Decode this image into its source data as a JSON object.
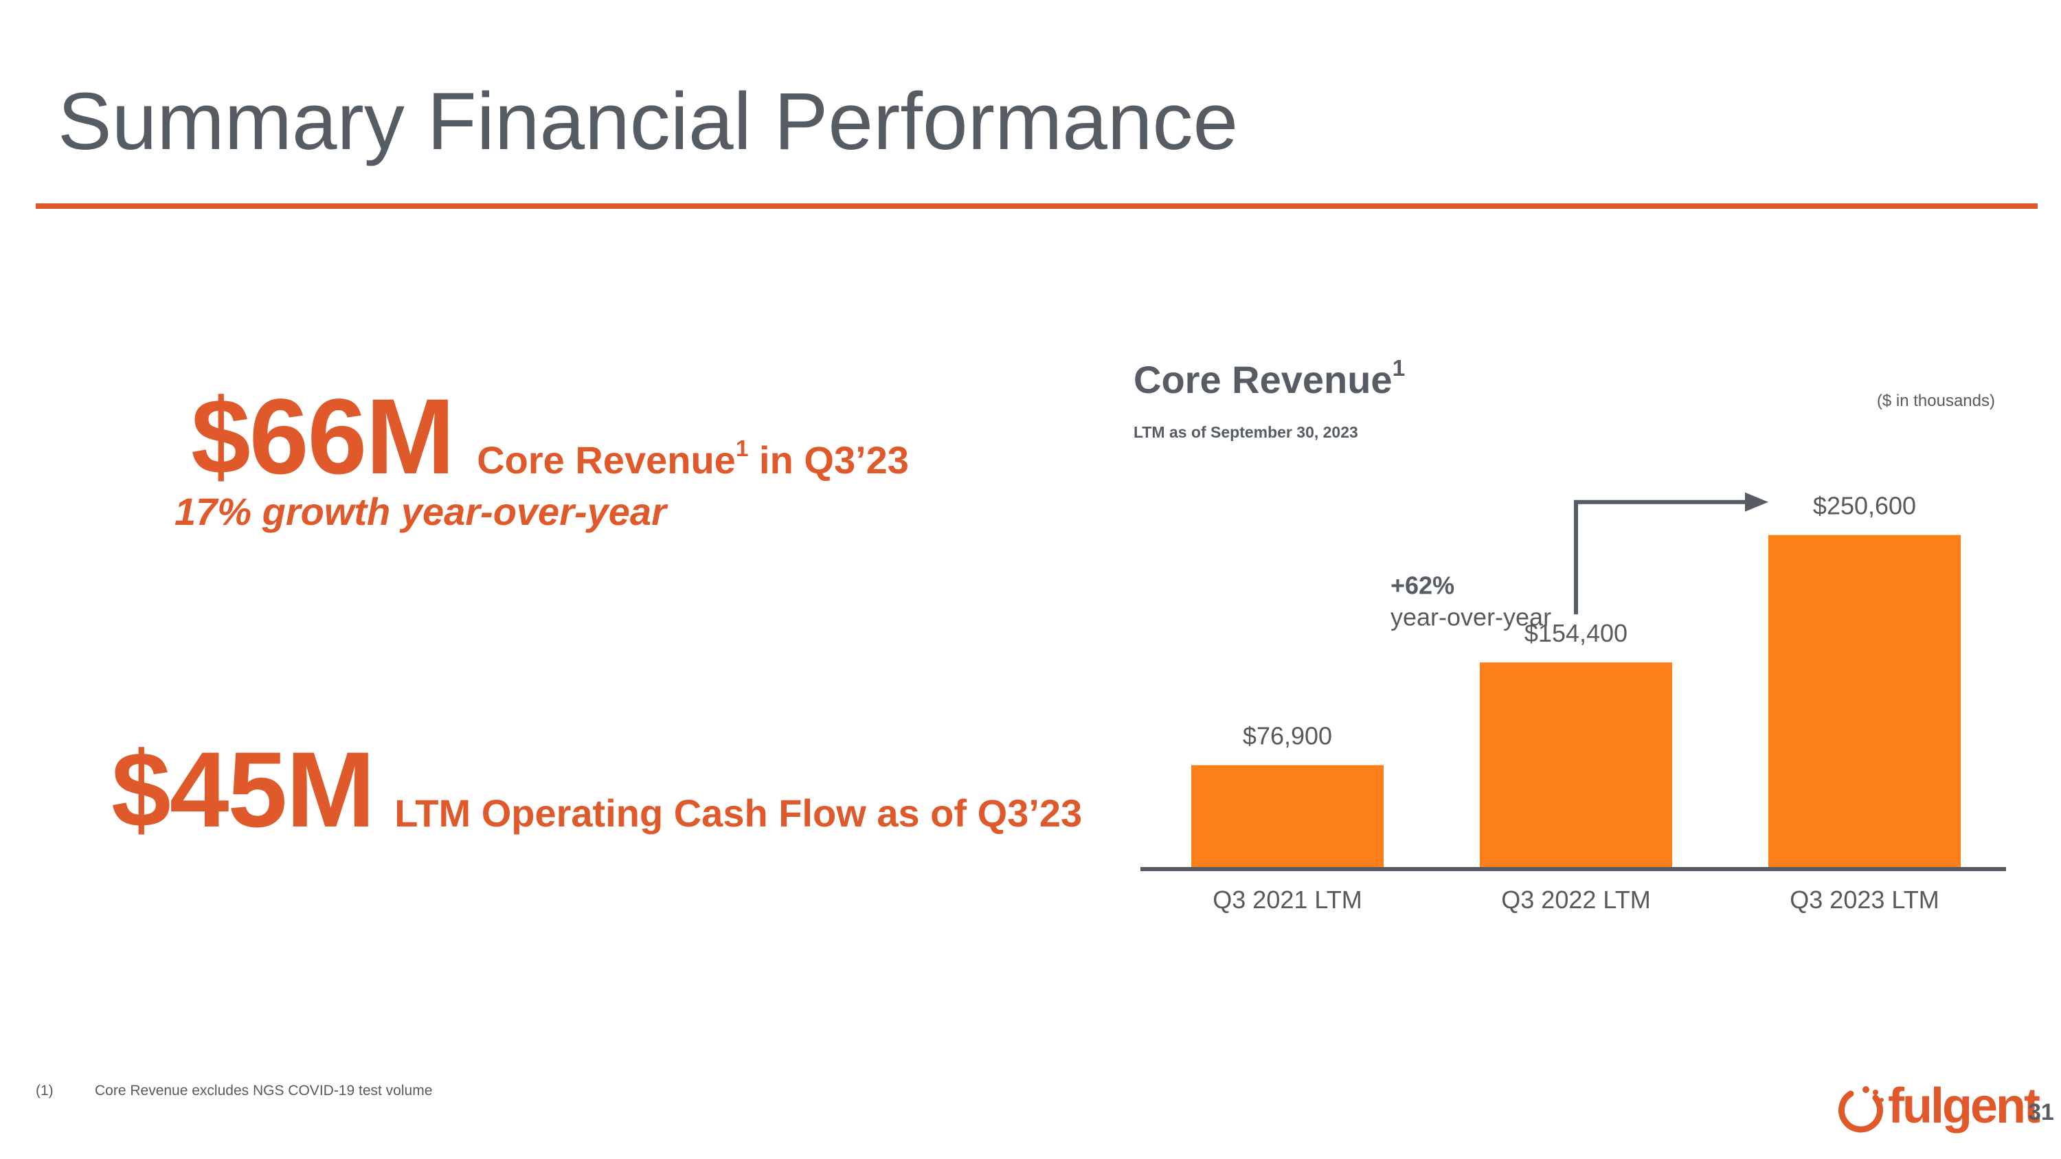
{
  "slide": {
    "title": "Summary Financial Performance",
    "page_number": "31"
  },
  "kpis": [
    {
      "big": "$66M",
      "label_pre": "Core Revenue",
      "label_sup": "1",
      "label_post": " in Q3’23",
      "sub": "17% growth year-over-year"
    },
    {
      "big": "$45M",
      "label": "LTM Operating Cash Flow as of Q3’23"
    }
  ],
  "chart_header": {
    "title": "Core Revenue",
    "title_sup": "1",
    "subtitle": "LTM as of September 30, 2023",
    "units": "($ in thousands)"
  },
  "chart_data": {
    "type": "bar",
    "title": "Core Revenue",
    "categories": [
      "Q3 2021 LTM",
      "Q3 2022 LTM",
      "Q3 2023 LTM"
    ],
    "values": [
      76900,
      154400,
      250600
    ],
    "value_labels": [
      "$76,900",
      "$154,400",
      "$250,600"
    ],
    "ylim": [
      0,
      280000
    ],
    "ylabel": "($ in thousands)",
    "annotation": {
      "pct": "+62%",
      "text": "year-over-year",
      "from_index": 1,
      "to_index": 2
    }
  },
  "footnote": {
    "number": "(1)",
    "text": "Core Revenue excludes NGS COVID-19 test volume"
  },
  "brand": {
    "name": "fulgent",
    "accent_color": "#e0592a",
    "bar_color": "#fd7f1a",
    "text_color": "#555c63"
  }
}
